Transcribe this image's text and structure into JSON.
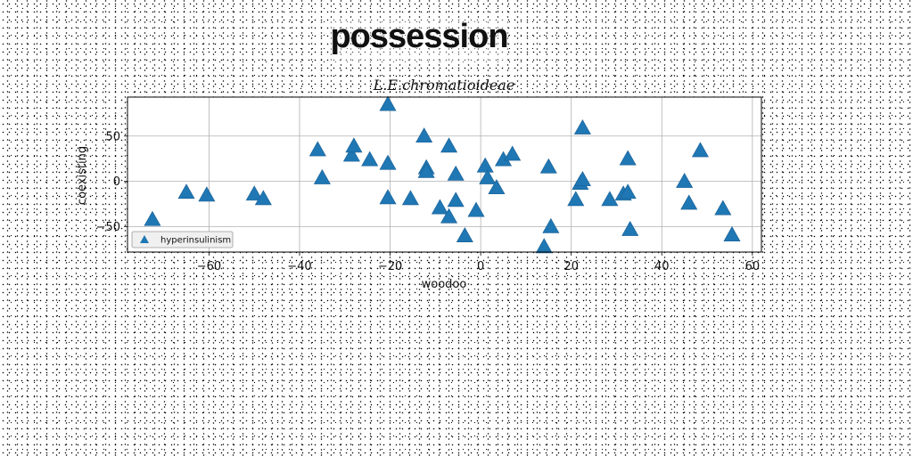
{
  "figure": {
    "title": "possession"
  },
  "chart_data": {
    "type": "scatter",
    "title": "L.E.chromatioideae",
    "xlabel": "woodoo",
    "ylabel": "coexisting",
    "xlim": [
      -78,
      62
    ],
    "ylim": [
      -78,
      93
    ],
    "xticks": [
      -60,
      -40,
      -20,
      0,
      20,
      40,
      60
    ],
    "yticks": [
      -50,
      0,
      50
    ],
    "grid": true,
    "legend_position": "lower-left",
    "marker": "triangle-up",
    "color": "#1f77b4",
    "series": [
      {
        "name": "hyperinsulinism",
        "points": [
          [
            -72.5,
            -42
          ],
          [
            -65,
            -12
          ],
          [
            -60.5,
            -15
          ],
          [
            -50,
            -14
          ],
          [
            -48,
            -19
          ],
          [
            -36,
            35
          ],
          [
            -35,
            4
          ],
          [
            -28.5,
            29
          ],
          [
            -28,
            39
          ],
          [
            -24.5,
            24
          ],
          [
            -20.5,
            85
          ],
          [
            -20.5,
            20
          ],
          [
            -20.5,
            -18
          ],
          [
            -15.5,
            -19
          ],
          [
            -12.5,
            50
          ],
          [
            -12,
            15
          ],
          [
            -12,
            11
          ],
          [
            -9,
            -29
          ],
          [
            -7,
            39
          ],
          [
            -7,
            -39
          ],
          [
            -5.5,
            8
          ],
          [
            -5.5,
            -21
          ],
          [
            -3.5,
            -60
          ],
          [
            -1,
            -32
          ],
          [
            1,
            17
          ],
          [
            1.5,
            4
          ],
          [
            3.5,
            -7
          ],
          [
            5,
            24
          ],
          [
            7,
            30
          ],
          [
            14,
            -72
          ],
          [
            15,
            16
          ],
          [
            15.5,
            -50
          ],
          [
            21,
            -20
          ],
          [
            22,
            -2
          ],
          [
            22.5,
            2
          ],
          [
            22.5,
            59
          ],
          [
            28.5,
            -20
          ],
          [
            31.5,
            -14
          ],
          [
            32.5,
            -12
          ],
          [
            32.5,
            25
          ],
          [
            33,
            -53
          ],
          [
            45,
            0
          ],
          [
            46,
            -24
          ],
          [
            48.5,
            34
          ],
          [
            53.5,
            -30
          ],
          [
            55.5,
            -59
          ]
        ]
      }
    ]
  }
}
